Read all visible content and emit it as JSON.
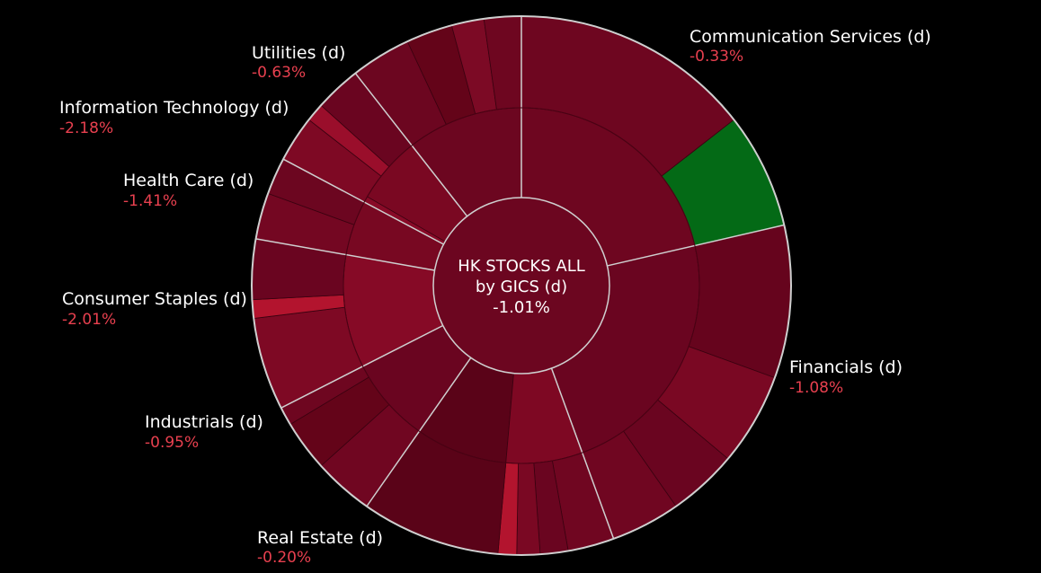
{
  "chart_data": {
    "type": "sunburst",
    "title": "HK STOCKS ALL",
    "subtitle": "by GICS (d)",
    "total_change": "-1.01%",
    "sectors": [
      {
        "name": "Communication Services (d)",
        "change": "-0.33%",
        "color": "#6e0620"
      },
      {
        "name": "Financials (d)",
        "change": "-1.08%",
        "color": "#6a0520"
      },
      {
        "name": "Real Estate (d)",
        "change": "-0.20%",
        "color": "#5e041a"
      },
      {
        "name": "Industrials (d)",
        "change": "-0.95%",
        "color": "#6a0520"
      },
      {
        "name": "Consumer Staples (d)",
        "change": "-2.01%",
        "color": "#860a26"
      },
      {
        "name": "Health Care (d)",
        "change": "-1.41%",
        "color": "#780822"
      },
      {
        "name": "Information Technology (d)",
        "change": "-2.18%",
        "color": "#880a27"
      },
      {
        "name": "Utilities (d)",
        "change": "-0.63%",
        "color": "#6c0620"
      }
    ],
    "colors": {
      "positive": "#046a16",
      "negative_light": "#b3142e",
      "negative_dark": "#5a0318",
      "center": "#6c0620",
      "divider": "#cfcfcf",
      "label_value": "#e8404f"
    }
  }
}
